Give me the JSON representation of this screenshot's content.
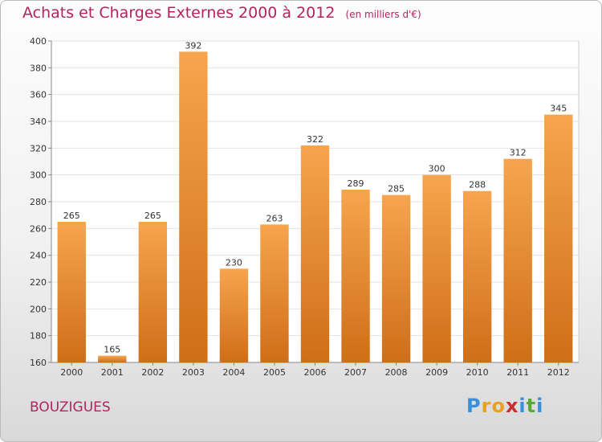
{
  "title": "Achats et Charges Externes 2000 à 2012",
  "subtitle": "(en milliers d'€)",
  "location": "BOUZIGUES",
  "logo": {
    "letters": [
      "P",
      "r",
      "o",
      "x",
      "i",
      "t",
      "i"
    ],
    "colors": [
      "#3b8fd8",
      "#e8a020",
      "#e8a020",
      "#c83030",
      "#3b8fd8",
      "#58a83a",
      "#3b8fd8"
    ]
  },
  "colors": {
    "bar_top": "#f6a54e",
    "bar_bottom": "#cf6e17",
    "accent": "#b4235e"
  },
  "chart_data": {
    "type": "bar",
    "categories": [
      "2000",
      "2001",
      "2002",
      "2003",
      "2004",
      "2005",
      "2006",
      "2007",
      "2008",
      "2009",
      "2010",
      "2011",
      "2012"
    ],
    "values": [
      265,
      165,
      265,
      392,
      230,
      263,
      322,
      289,
      285,
      300,
      288,
      312,
      345
    ],
    "ylim": [
      160,
      400
    ],
    "yticks": [
      160,
      180,
      200,
      220,
      240,
      260,
      280,
      300,
      320,
      340,
      360,
      380,
      400
    ],
    "grid": true
  }
}
